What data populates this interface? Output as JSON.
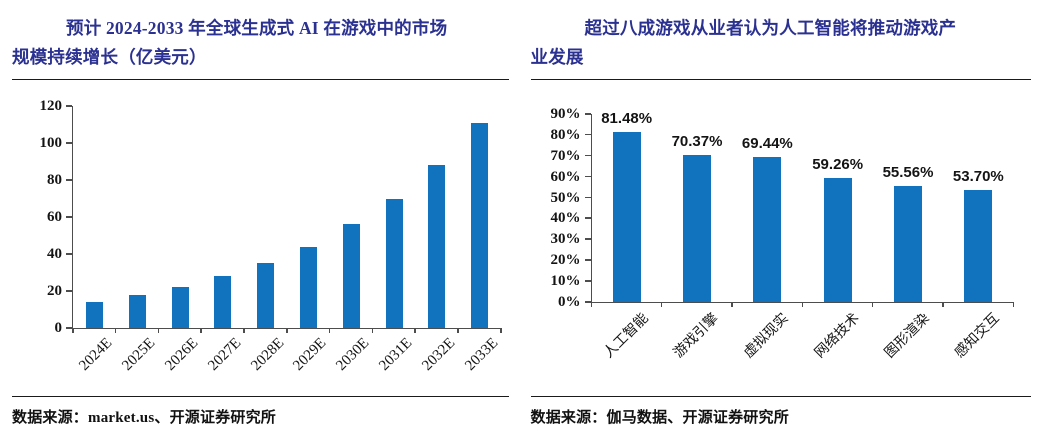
{
  "panels": [
    {
      "title_lines": [
        "预计 2024-2033 年全球生成式 AI 在游戏中的市场",
        "规模持续增长（亿美元）"
      ],
      "source": "数据来源：market.us、开源证券研究所"
    },
    {
      "title_lines": [
        "超过八成游戏从业者认为人工智能将推动游戏产",
        "业发展"
      ],
      "source": "数据来源：伽马数据、开源证券研究所"
    }
  ],
  "colors": {
    "title": "#2B3191",
    "bar": "#1173BD",
    "axis": "#4d4d4d",
    "text": "#141414"
  },
  "chart_data": [
    {
      "type": "bar",
      "title": "预计 2024-2033 年全球生成式 AI 在游戏中的市场规模持续增长（亿美元）",
      "unit": "亿美元",
      "categories": [
        "2024E",
        "2025E",
        "2026E",
        "2027E",
        "2028E",
        "2029E",
        "2030E",
        "2031E",
        "2032E",
        "2033E"
      ],
      "values": [
        14,
        18,
        22,
        28,
        35,
        44,
        56,
        70,
        88,
        111
      ],
      "ylim": [
        0,
        120
      ],
      "yticks": [
        0,
        20,
        40,
        60,
        80,
        100,
        120
      ],
      "ytick_suffix": "",
      "data_labels": false,
      "grid": false,
      "legend": "none",
      "source": "数据来源：market.us、开源证券研究所"
    },
    {
      "type": "bar",
      "title": "超过八成游戏从业者认为人工智能将推动游戏产业发展",
      "categories": [
        "人工智能",
        "游戏引擎",
        "虚拟现实",
        "网络技术",
        "图形渲染",
        "感知交互"
      ],
      "values": [
        81.48,
        70.37,
        69.44,
        59.26,
        55.56,
        53.7
      ],
      "value_labels": [
        "81.48%",
        "70.37%",
        "69.44%",
        "59.26%",
        "55.56%",
        "53.70%"
      ],
      "ylim": [
        0,
        90
      ],
      "yticks": [
        0,
        10,
        20,
        30,
        40,
        50,
        60,
        70,
        80,
        90
      ],
      "ytick_suffix": "%",
      "data_labels": true,
      "grid": false,
      "legend": "none",
      "source": "数据来源：伽马数据、开源证券研究所"
    }
  ]
}
